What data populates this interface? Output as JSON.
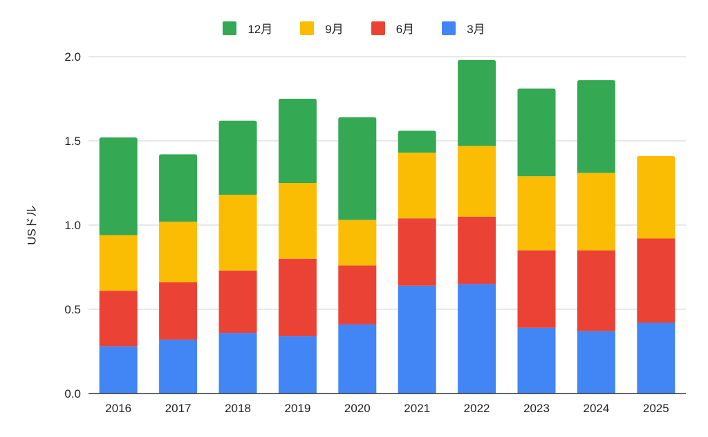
{
  "chart_data": {
    "type": "bar",
    "stacked": true,
    "title": "",
    "xlabel": "",
    "ylabel": "USドル",
    "ylim": [
      0,
      2.0
    ],
    "yticks": [
      "0.0",
      "0.5",
      "1.0",
      "1.5",
      "2.0"
    ],
    "grid": true,
    "legend_position": "top",
    "categories": [
      "2016",
      "2017",
      "2018",
      "2019",
      "2020",
      "2021",
      "2022",
      "2023",
      "2024",
      "2025"
    ],
    "series": [
      {
        "name": "3月",
        "color": "#4285F4",
        "values": [
          0.28,
          0.32,
          0.36,
          0.34,
          0.41,
          0.64,
          0.65,
          0.39,
          0.37,
          0.42
        ]
      },
      {
        "name": "6月",
        "color": "#EA4335",
        "values": [
          0.33,
          0.34,
          0.37,
          0.46,
          0.35,
          0.4,
          0.4,
          0.46,
          0.48,
          0.5
        ]
      },
      {
        "name": "9月",
        "color": "#FBBC04",
        "values": [
          0.33,
          0.36,
          0.45,
          0.45,
          0.27,
          0.39,
          0.42,
          0.44,
          0.46,
          0.49
        ]
      },
      {
        "name": "12月",
        "color": "#34A853",
        "values": [
          0.58,
          0.4,
          0.44,
          0.5,
          0.61,
          0.13,
          0.51,
          0.52,
          0.55,
          0
        ]
      }
    ],
    "legend_order": [
      "12月",
      "9月",
      "6月",
      "3月"
    ]
  }
}
